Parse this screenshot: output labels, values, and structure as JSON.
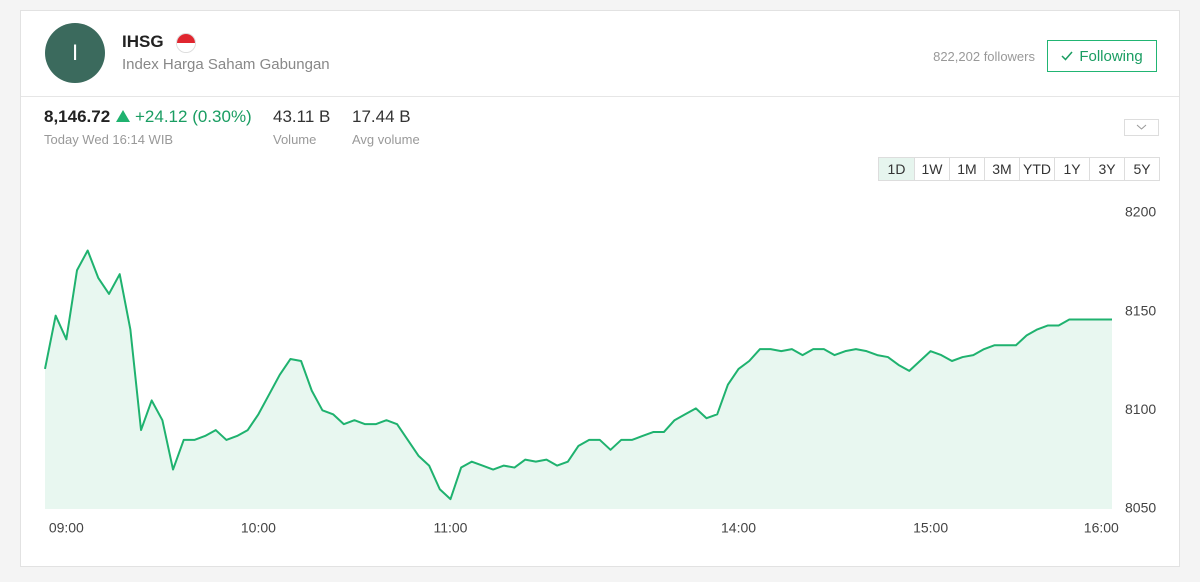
{
  "header": {
    "avatar": "I",
    "title": "IHSG",
    "subtitle": "Index Harga Saham Gabungan",
    "followers": "822,202 followers",
    "follow_button": "Following"
  },
  "quote": {
    "price": "8,146.72",
    "change": "+24.12 (0.30%)",
    "timestamp": "Today Wed 16:14 WIB",
    "volume": "43.11 B",
    "volume_label": "Volume",
    "avg_volume": "17.44 B",
    "avg_volume_label": "Avg volume"
  },
  "ranges": [
    "1D",
    "1W",
    "1M",
    "3M",
    "YTD",
    "1Y",
    "3Y",
    "5Y"
  ],
  "chart_data": {
    "type": "line",
    "color": "#1fb26f",
    "fill": "#e8f7f0",
    "categories": [
      null,
      null,
      "09:00",
      null,
      null,
      null,
      null,
      null,
      null,
      null,
      null,
      null,
      null,
      null,
      null,
      null,
      null,
      null,
      null,
      null,
      "10:00",
      null,
      null,
      null,
      null,
      null,
      null,
      null,
      null,
      null,
      null,
      null,
      null,
      null,
      null,
      null,
      null,
      null,
      "11:00",
      null,
      null,
      null,
      null,
      null,
      null,
      null,
      null,
      null,
      null,
      null,
      null,
      null,
      null,
      null,
      null,
      null,
      null,
      null,
      null,
      null,
      null,
      null,
      null,
      null,
      null,
      "14:00",
      null,
      null,
      null,
      null,
      null,
      null,
      null,
      null,
      null,
      null,
      null,
      null,
      null,
      null,
      null,
      null,
      null,
      "15:00",
      null,
      null,
      null,
      null,
      null,
      null,
      null,
      null,
      null,
      null,
      null,
      null,
      null,
      null,
      null,
      "16:00",
      null
    ],
    "values": [
      8121,
      8148,
      8136,
      8171,
      8181,
      8167,
      8159,
      8169,
      8141,
      8090,
      8105,
      8095,
      8070,
      8085,
      8085,
      8087,
      8090,
      8085,
      8087,
      8090,
      8098,
      8108,
      8118,
      8126,
      8125,
      8110,
      8100,
      8098,
      8093,
      8095,
      8093,
      8093,
      8095,
      8093,
      8085,
      8077,
      8072,
      8060,
      8055,
      8071,
      8074,
      8072,
      8070,
      8072,
      8071,
      8075,
      8074,
      8075,
      8072,
      8074,
      8082,
      8085,
      8085,
      8080,
      8085,
      8085,
      8087,
      8089,
      8089,
      8095,
      8098,
      8101,
      8096,
      8098,
      8113,
      8121,
      8125,
      8131,
      8131,
      8130,
      8131,
      8128,
      8131,
      8131,
      8128,
      8130,
      8131,
      8130,
      8128,
      8127,
      8123,
      8120,
      8125,
      8130,
      8128,
      8125,
      8127,
      8128,
      8131,
      8133,
      8133,
      8133,
      8138,
      8141,
      8143,
      8143,
      8146,
      8146,
      8146,
      8146,
      8146
    ],
    "ylim": [
      8050,
      8200
    ],
    "yticks": [
      8050,
      8100,
      8150,
      8200
    ],
    "grid": false
  }
}
